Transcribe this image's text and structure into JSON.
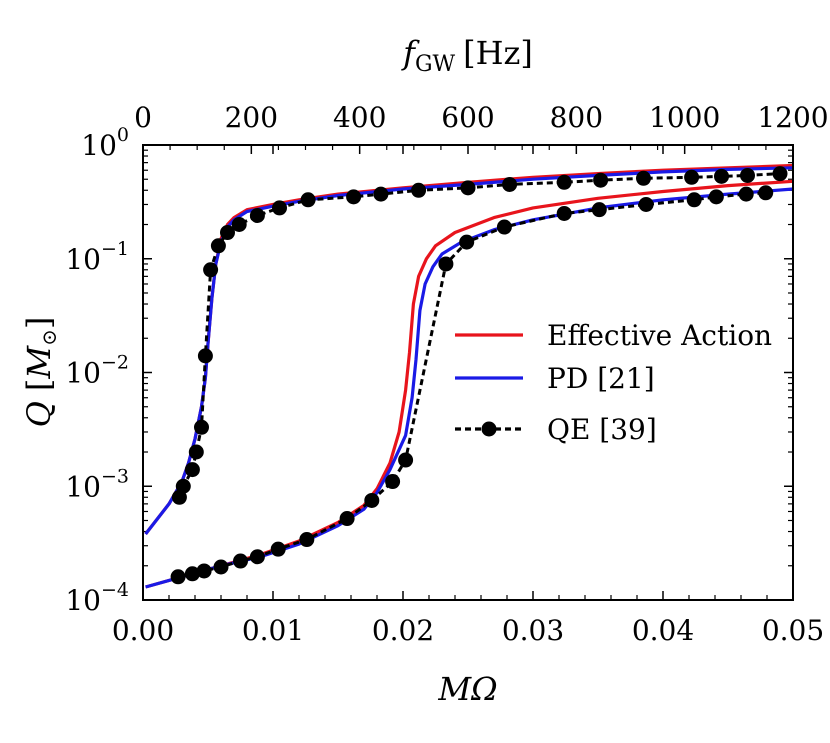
{
  "chart_data": {
    "type": "line",
    "xlabel": "MΩ",
    "x2label": "f",
    "x2label_sub": "GW",
    "x2label_unit": "[Hz]",
    "ylabel": "Q",
    "ylabel_unit": "M",
    "xlim": [
      0,
      0.05
    ],
    "x2lim": [
      0,
      1200
    ],
    "ylim": [
      0.0001,
      1
    ],
    "yscale": "log",
    "xticks": [
      "0.00",
      "0.01",
      "0.02",
      "0.03",
      "0.04",
      "0.05"
    ],
    "x2ticks": [
      "0",
      "200",
      "400",
      "600",
      "800",
      "1000",
      "1200"
    ],
    "yticks": [
      {
        "base": "10",
        "exp": "−4"
      },
      {
        "base": "10",
        "exp": "−3"
      },
      {
        "base": "10",
        "exp": "−2"
      },
      {
        "base": "10",
        "exp": "−1"
      },
      {
        "base": "10",
        "exp": "0"
      }
    ],
    "legend_position": "center-right",
    "series": [
      {
        "name": "Effective Action",
        "color": "#e8141c",
        "style": "solid",
        "branches": [
          {
            "x": [
              0.0002,
              0.002,
              0.003,
              0.0035,
              0.004,
              0.0045,
              0.0048,
              0.005,
              0.0053,
              0.0056,
              0.006,
              0.0065,
              0.007,
              0.008,
              0.01,
              0.012,
              0.015,
              0.02,
              0.025,
              0.03,
              0.035,
              0.04,
              0.045,
              0.05
            ],
            "y": [
              0.00038,
              0.0007,
              0.0011,
              0.0016,
              0.0026,
              0.005,
              0.009,
              0.018,
              0.045,
              0.09,
              0.15,
              0.2,
              0.23,
              0.27,
              0.3,
              0.33,
              0.37,
              0.42,
              0.47,
              0.52,
              0.56,
              0.6,
              0.63,
              0.66
            ]
          },
          {
            "x": [
              0.0002,
              0.003,
              0.006,
              0.009,
              0.012,
              0.015,
              0.017,
              0.018,
              0.019,
              0.0197,
              0.0202,
              0.0205,
              0.0208,
              0.0212,
              0.0218,
              0.0225,
              0.024,
              0.027,
              0.03,
              0.035,
              0.04,
              0.045,
              0.05
            ],
            "y": [
              0.00013,
              0.00016,
              0.0002,
              0.00025,
              0.00033,
              0.00048,
              0.00068,
              0.00095,
              0.0016,
              0.003,
              0.007,
              0.015,
              0.04,
              0.07,
              0.1,
              0.13,
              0.17,
              0.23,
              0.28,
              0.34,
              0.39,
              0.44,
              0.48
            ]
          }
        ]
      },
      {
        "name": "PD [21]",
        "color": "#1a1ae6",
        "style": "solid",
        "branches": [
          {
            "x": [
              0.0002,
              0.002,
              0.003,
              0.0035,
              0.004,
              0.0045,
              0.0048,
              0.005,
              0.0053,
              0.0056,
              0.006,
              0.0065,
              0.007,
              0.008,
              0.01,
              0.012,
              0.015,
              0.02,
              0.025,
              0.03,
              0.035,
              0.04,
              0.045,
              0.05
            ],
            "y": [
              0.00038,
              0.0007,
              0.0011,
              0.0016,
              0.0026,
              0.005,
              0.009,
              0.018,
              0.045,
              0.09,
              0.14,
              0.19,
              0.22,
              0.26,
              0.29,
              0.32,
              0.36,
              0.41,
              0.45,
              0.5,
              0.54,
              0.58,
              0.61,
              0.63
            ]
          },
          {
            "x": [
              0.0002,
              0.003,
              0.006,
              0.009,
              0.012,
              0.015,
              0.017,
              0.018,
              0.019,
              0.0202,
              0.0207,
              0.021,
              0.0213,
              0.0217,
              0.0223,
              0.023,
              0.0245,
              0.027,
              0.03,
              0.035,
              0.04,
              0.045,
              0.05
            ],
            "y": [
              0.00013,
              0.00016,
              0.0002,
              0.00024,
              0.00031,
              0.00045,
              0.00063,
              0.00088,
              0.0014,
              0.0028,
              0.006,
              0.013,
              0.035,
              0.06,
              0.085,
              0.11,
              0.14,
              0.18,
              0.22,
              0.28,
              0.33,
              0.37,
              0.41
            ]
          }
        ]
      },
      {
        "name": "QE [39]",
        "color": "#000000",
        "style": "dashed-markers",
        "branches": [
          {
            "x": [
              0.0028,
              0.0031,
              0.0038,
              0.0041,
              0.0045,
              0.0048,
              0.0052,
              0.0058,
              0.0065,
              0.0074,
              0.0088,
              0.0105,
              0.0127,
              0.0162,
              0.0183,
              0.0212,
              0.025,
              0.0282,
              0.0324,
              0.0352,
              0.0385,
              0.0422,
              0.0445,
              0.0465,
              0.049
            ],
            "y": [
              0.0008,
              0.001,
              0.0014,
              0.002,
              0.0033,
              0.014,
              0.08,
              0.13,
              0.17,
              0.2,
              0.24,
              0.28,
              0.33,
              0.35,
              0.37,
              0.4,
              0.42,
              0.45,
              0.47,
              0.49,
              0.51,
              0.52,
              0.53,
              0.54,
              0.56
            ]
          },
          {
            "x": [
              0.0027,
              0.0038,
              0.0047,
              0.006,
              0.0075,
              0.0088,
              0.0104,
              0.0126,
              0.0157,
              0.0176,
              0.0192,
              0.0202,
              0.0233,
              0.0249,
              0.0278,
              0.0324,
              0.0351,
              0.0387,
              0.0424,
              0.0441,
              0.0464,
              0.0479
            ],
            "y": [
              0.00016,
              0.00017,
              0.00018,
              0.000195,
              0.00022,
              0.00024,
              0.00028,
              0.00034,
              0.00052,
              0.00075,
              0.0011,
              0.0017,
              0.09,
              0.14,
              0.19,
              0.25,
              0.27,
              0.3,
              0.33,
              0.35,
              0.37,
              0.38
            ]
          }
        ]
      }
    ]
  }
}
